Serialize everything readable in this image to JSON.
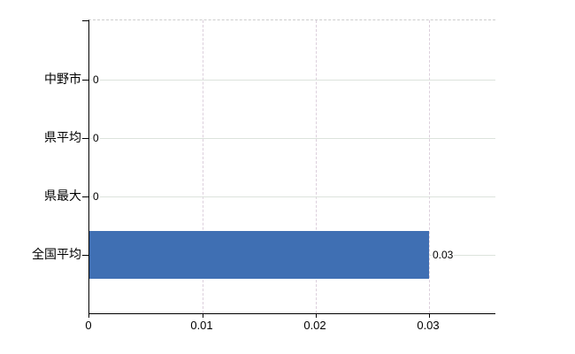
{
  "chart_data": {
    "type": "bar",
    "orientation": "horizontal",
    "title": "",
    "categories": [
      "中野市",
      "県平均",
      "県最大",
      "全国平均"
    ],
    "values": [
      0,
      0,
      0,
      0.03
    ],
    "value_labels": [
      "0",
      "0",
      "0",
      "0.03"
    ],
    "x_axis": {
      "ticks": [
        0,
        0.01,
        0.02,
        0.03
      ],
      "tick_labels": [
        "0",
        "0.01",
        "0.02",
        "0.03"
      ],
      "min": 0,
      "max": 0.0359
    },
    "grid": {
      "horizontal": true,
      "vertical": true
    },
    "legend_position": "none",
    "colors": {
      "bar": "#3f6fb3",
      "axis": "#000000",
      "grid_horizontal": "#dce3dc",
      "grid_vertical": "#dccfdc",
      "plot_top_border": "#cccccc",
      "text": "#000000"
    }
  }
}
